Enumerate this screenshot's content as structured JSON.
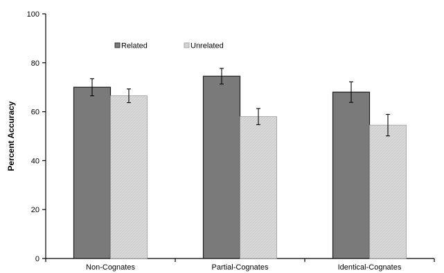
{
  "chart_data": {
    "type": "bar",
    "title": "",
    "xlabel": "",
    "ylabel": "Percent Accuracy",
    "ylim": [
      0,
      100
    ],
    "yticks": [
      0,
      20,
      40,
      60,
      80,
      100
    ],
    "grid": false,
    "legend_position": "top-left",
    "categories": [
      "Non-Cognates",
      "Partial-Cognates",
      "Identical-Cognates"
    ],
    "series": [
      {
        "name": "Related",
        "color": "#7a7a7a",
        "values": [
          70,
          74.5,
          68
        ],
        "errors": [
          3.5,
          3.2,
          4.2
        ]
      },
      {
        "name": "Unrelated",
        "color": "#d9d9d9",
        "values": [
          66.5,
          58,
          54.5
        ],
        "errors": [
          2.8,
          3.3,
          4.4
        ]
      }
    ]
  }
}
